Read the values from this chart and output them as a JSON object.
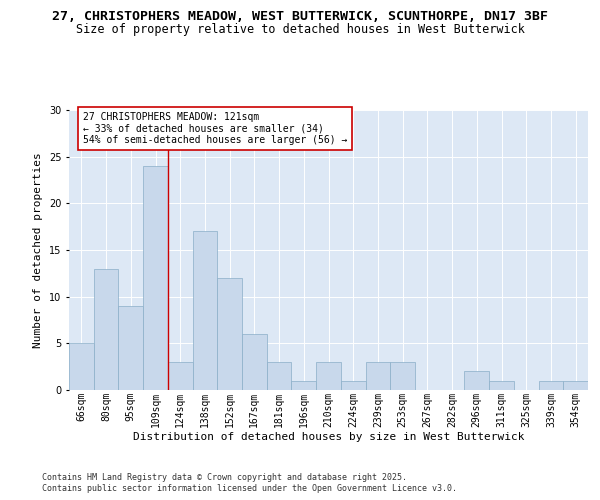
{
  "title_line1": "27, CHRISTOPHERS MEADOW, WEST BUTTERWICK, SCUNTHORPE, DN17 3BF",
  "title_line2": "Size of property relative to detached houses in West Butterwick",
  "xlabel": "Distribution of detached houses by size in West Butterwick",
  "ylabel": "Number of detached properties",
  "bar_labels": [
    "66sqm",
    "80sqm",
    "95sqm",
    "109sqm",
    "124sqm",
    "138sqm",
    "152sqm",
    "167sqm",
    "181sqm",
    "196sqm",
    "210sqm",
    "224sqm",
    "239sqm",
    "253sqm",
    "267sqm",
    "282sqm",
    "296sqm",
    "311sqm",
    "325sqm",
    "339sqm",
    "354sqm"
  ],
  "bar_values": [
    5,
    13,
    9,
    24,
    3,
    17,
    12,
    6,
    3,
    1,
    3,
    1,
    3,
    3,
    0,
    0,
    2,
    1,
    0,
    1,
    1
  ],
  "bar_color": "#c8d8eb",
  "bar_edge_color": "#8aaec8",
  "background_color": "#dde8f5",
  "grid_color": "#ffffff",
  "ylim": [
    0,
    30
  ],
  "yticks": [
    0,
    5,
    10,
    15,
    20,
    25,
    30
  ],
  "annotation_text": "27 CHRISTOPHERS MEADOW: 121sqm\n← 33% of detached houses are smaller (34)\n54% of semi-detached houses are larger (56) →",
  "annotation_box_color": "#ffffff",
  "annotation_box_edge": "#cc0000",
  "red_line_color": "#cc0000",
  "footer_line1": "Contains HM Land Registry data © Crown copyright and database right 2025.",
  "footer_line2": "Contains public sector information licensed under the Open Government Licence v3.0.",
  "title_fontsize": 9.5,
  "subtitle_fontsize": 8.5,
  "axis_label_fontsize": 8,
  "tick_fontsize": 7,
  "annotation_fontsize": 7,
  "footer_fontsize": 6
}
